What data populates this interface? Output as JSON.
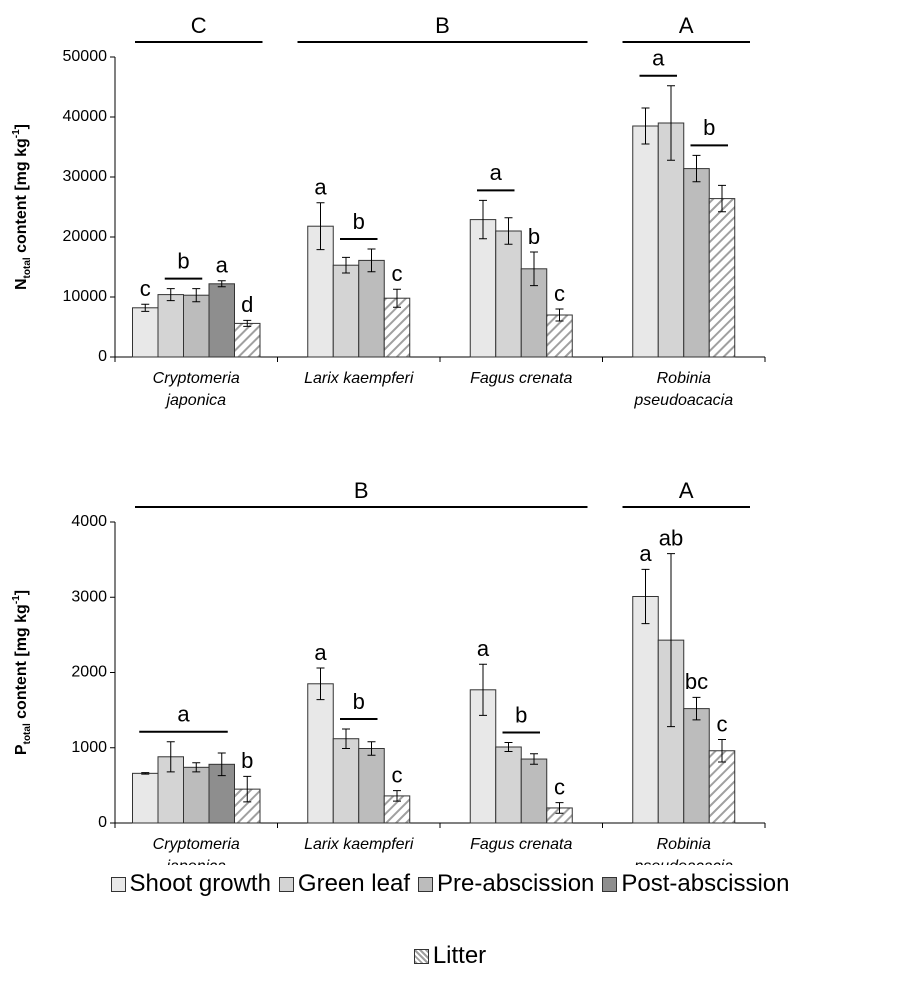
{
  "chart_data": {
    "type": "bar",
    "categories": [
      [
        "Cryptomeria",
        "japonica"
      ],
      [
        "Larix kaempferi"
      ],
      [
        "Fagus crenata"
      ],
      [
        "Robinia",
        "pseudoacacia"
      ]
    ],
    "series": [
      {
        "name": "Shoot growth",
        "color": "#e8e8e8",
        "hatch": false
      },
      {
        "name": "Green leaf",
        "color": "#d4d4d4",
        "hatch": false
      },
      {
        "name": "Pre-abscission",
        "color": "#bcbcbc",
        "hatch": false
      },
      {
        "name": "Post-abscission",
        "color": "#8e8e8e",
        "hatch": false
      },
      {
        "name": "Litter",
        "color": "#a0a0a0",
        "hatch": true
      }
    ],
    "panels": [
      {
        "y_label": {
          "base": "N",
          "sub": "total",
          "text": " content [mg kg",
          "sup": "-1",
          "close": "]"
        },
        "ylim": [
          0,
          50000
        ],
        "yticks": [
          0,
          10000,
          20000,
          30000,
          40000,
          50000
        ],
        "values": [
          [
            8200,
            21800,
            22900,
            38500
          ],
          [
            10400,
            15300,
            21000,
            39000
          ],
          [
            10300,
            16100,
            14700,
            31400
          ],
          [
            12200,
            null,
            null,
            null
          ],
          [
            5600,
            9800,
            7000,
            26400
          ]
        ],
        "errors": [
          [
            600,
            3900,
            3200,
            3000
          ],
          [
            1000,
            1300,
            2200,
            6200
          ],
          [
            1100,
            1900,
            2800,
            2200
          ],
          [
            500,
            null,
            null,
            null
          ],
          [
            500,
            1500,
            1000,
            2200
          ]
        ],
        "annotations": [
          {
            "text": "c",
            "category": 0,
            "bars": [
              0
            ]
          },
          {
            "text": "b",
            "category": 0,
            "bars": [
              1,
              2
            ]
          },
          {
            "text": "a",
            "category": 0,
            "bars": [
              3
            ]
          },
          {
            "text": "d",
            "category": 0,
            "bars": [
              4
            ]
          },
          {
            "text": "a",
            "category": 1,
            "bars": [
              0
            ]
          },
          {
            "text": "b",
            "category": 1,
            "bars": [
              1,
              2
            ]
          },
          {
            "text": "c",
            "category": 1,
            "bars": [
              4
            ]
          },
          {
            "text": "a",
            "category": 2,
            "bars": [
              0,
              1
            ]
          },
          {
            "text": "b",
            "category": 2,
            "bars": [
              2
            ]
          },
          {
            "text": "c",
            "category": 2,
            "bars": [
              4
            ]
          },
          {
            "text": "a",
            "category": 3,
            "bars": [
              0,
              1
            ]
          },
          {
            "text": "b",
            "category": 3,
            "bars": [
              2,
              4
            ]
          }
        ],
        "group_labels": [
          {
            "text": "C",
            "categories": [
              0
            ]
          },
          {
            "text": "B",
            "categories": [
              1,
              2
            ]
          },
          {
            "text": "A",
            "categories": [
              3
            ]
          }
        ]
      },
      {
        "y_label": {
          "base": "P",
          "sub": "total",
          "text": " content [mg kg",
          "sup": "-1",
          "close": "]"
        },
        "ylim": [
          0,
          4000
        ],
        "yticks": [
          0,
          1000,
          2000,
          3000,
          4000
        ],
        "values": [
          [
            660,
            1850,
            1770,
            3010
          ],
          [
            880,
            1120,
            1010,
            2430
          ],
          [
            740,
            990,
            850,
            1520
          ],
          [
            780,
            null,
            null,
            null
          ],
          [
            450,
            360,
            200,
            960
          ]
        ],
        "errors": [
          [
            10,
            210,
            340,
            360
          ],
          [
            200,
            130,
            60,
            1150
          ],
          [
            60,
            90,
            70,
            150
          ],
          [
            150,
            null,
            null,
            null
          ],
          [
            170,
            70,
            70,
            150
          ]
        ],
        "annotations": [
          {
            "text": "a",
            "category": 0,
            "bars": [
              0,
              1,
              2,
              3
            ]
          },
          {
            "text": "b",
            "category": 0,
            "bars": [
              4
            ]
          },
          {
            "text": "a",
            "category": 1,
            "bars": [
              0
            ]
          },
          {
            "text": "b",
            "category": 1,
            "bars": [
              1,
              2
            ]
          },
          {
            "text": "c",
            "category": 1,
            "bars": [
              4
            ]
          },
          {
            "text": "a",
            "category": 2,
            "bars": [
              0
            ]
          },
          {
            "text": "b",
            "category": 2,
            "bars": [
              1,
              2
            ]
          },
          {
            "text": "c",
            "category": 2,
            "bars": [
              4
            ]
          },
          {
            "text": "a",
            "category": 3,
            "bars": [
              0
            ]
          },
          {
            "text": "ab",
            "category": 3,
            "bars": [
              1
            ]
          },
          {
            "text": "bc",
            "category": 3,
            "bars": [
              2
            ]
          },
          {
            "text": "c",
            "category": 3,
            "bars": [
              4
            ]
          }
        ],
        "group_labels": [
          {
            "text": "B",
            "categories": [
              0,
              1,
              2
            ]
          },
          {
            "text": "A",
            "categories": [
              3
            ]
          }
        ]
      }
    ]
  }
}
